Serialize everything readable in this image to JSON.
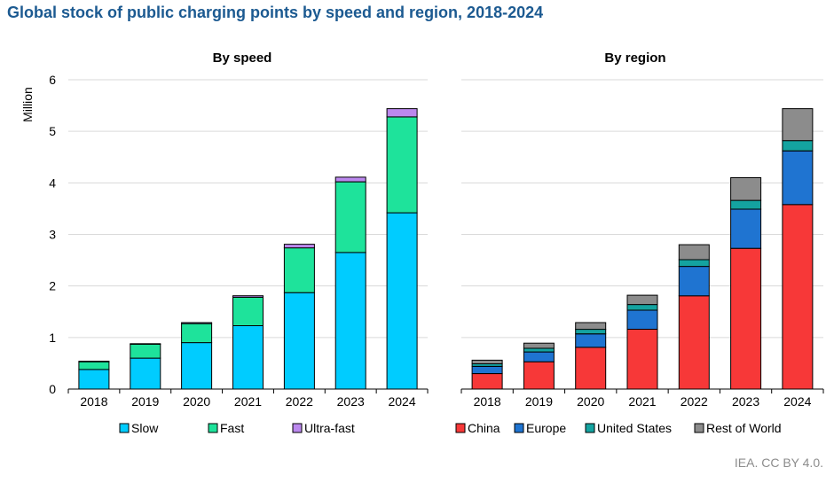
{
  "title": "Global stock of public charging points by speed and region, 2018-2024",
  "credit": "IEA. CC BY 4.0.",
  "colors": {
    "slow": "#00ccff",
    "fast": "#1ee39b",
    "ultra_fast": "#bb88ee",
    "china": "#f73838",
    "europe": "#1f74d1",
    "united_states": "#14a3a0",
    "rest_of_world": "#8c8c8c"
  },
  "chart_data": [
    {
      "type": "bar",
      "stacked": true,
      "title": "By speed",
      "ylabel": "Million",
      "xlabel": "",
      "ylim": [
        0,
        6
      ],
      "yticks": [
        0,
        1,
        2,
        3,
        4,
        5,
        6
      ],
      "grid": true,
      "legend_position": "bottom",
      "categories": [
        "2018",
        "2019",
        "2020",
        "2021",
        "2022",
        "2023",
        "2024"
      ],
      "series": [
        {
          "name": "Slow",
          "color": "#00ccff",
          "values": [
            0.38,
            0.6,
            0.9,
            1.23,
            1.87,
            2.65,
            3.42
          ]
        },
        {
          "name": "Fast",
          "color": "#1ee39b",
          "values": [
            0.15,
            0.27,
            0.37,
            0.55,
            0.87,
            1.37,
            1.86
          ]
        },
        {
          "name": "Ultra-fast",
          "color": "#bb88ee",
          "values": [
            0.01,
            0.01,
            0.02,
            0.03,
            0.07,
            0.09,
            0.16
          ]
        }
      ]
    },
    {
      "type": "bar",
      "stacked": true,
      "title": "By region",
      "ylabel": "",
      "xlabel": "",
      "ylim": [
        0,
        6
      ],
      "yticks": [
        0,
        1,
        2,
        3,
        4,
        5,
        6
      ],
      "grid": true,
      "legend_position": "bottom",
      "categories": [
        "2018",
        "2019",
        "2020",
        "2021",
        "2022",
        "2023",
        "2024"
      ],
      "series": [
        {
          "name": "China",
          "color": "#f73838",
          "values": [
            0.3,
            0.53,
            0.81,
            1.16,
            1.81,
            2.73,
            3.58
          ]
        },
        {
          "name": "Europe",
          "color": "#1f74d1",
          "values": [
            0.14,
            0.19,
            0.26,
            0.37,
            0.57,
            0.76,
            1.04
          ]
        },
        {
          "name": "United States",
          "color": "#14a3a0",
          "values": [
            0.05,
            0.07,
            0.09,
            0.11,
            0.13,
            0.17,
            0.2
          ]
        },
        {
          "name": "Rest of World",
          "color": "#8c8c8c",
          "values": [
            0.07,
            0.1,
            0.13,
            0.18,
            0.29,
            0.44,
            0.62
          ]
        }
      ]
    }
  ]
}
